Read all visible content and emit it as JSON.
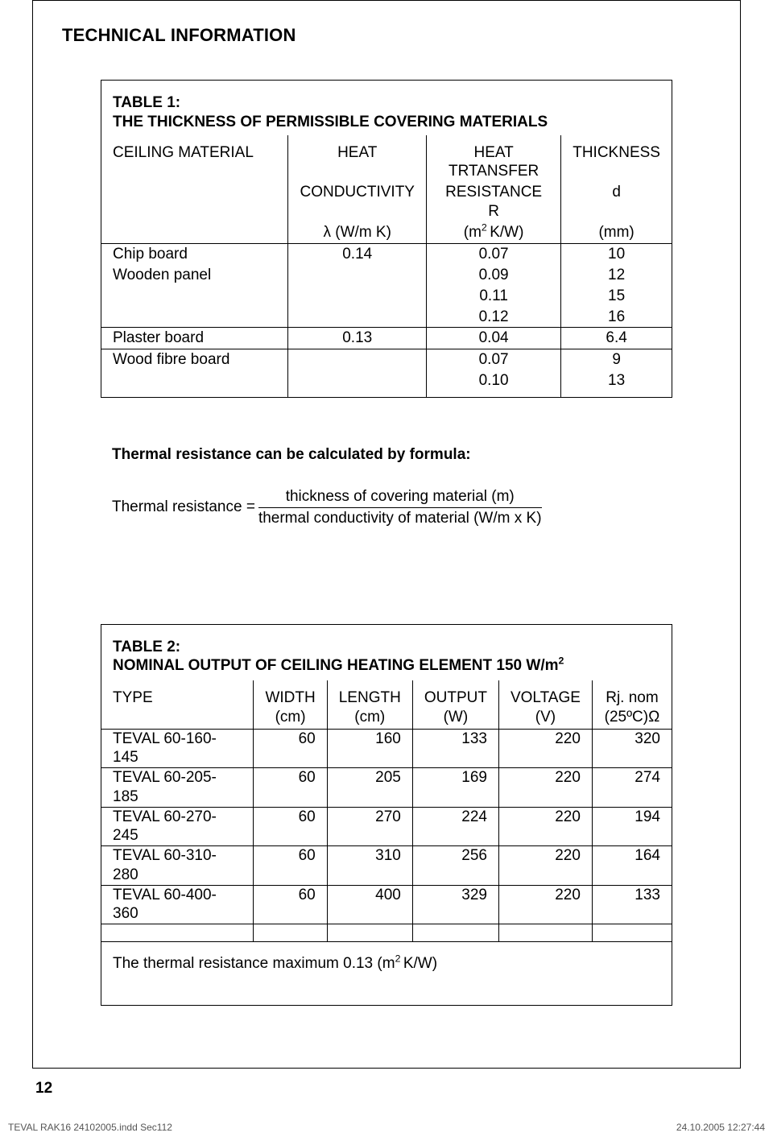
{
  "page_title": "TECHNICAL INFORMATION",
  "page_number": "12",
  "footer_left": "TEVAL RAK16 24102005.indd   Sec112",
  "footer_right": "24.10.2005   12:27:44",
  "table1": {
    "title_l1": "TABLE 1:",
    "title_l2": "THE THICKNESS OF PERMISSIBLE COVERING MATERIALS",
    "head_mat": "CEILING MATERIAL",
    "head_cond_l1": "HEAT",
    "head_cond_l2": "CONDUCTIVITY",
    "head_cond_l3": "λ (W/m K)",
    "head_res_l1": "HEAT  TRTANSFER",
    "head_res_l2": "RESISTANCE    R",
    "head_res_l3_pre": "(m",
    "head_res_l3_post": "K/W)",
    "head_thk_l1": "THICKNESS",
    "head_thk_l2": "d",
    "head_thk_l3": "(mm)",
    "rows": [
      {
        "mat": "Chip board",
        "cond": "0.14",
        "res": "0.07",
        "thk": "10"
      },
      {
        "mat": "Wooden panel",
        "cond": "",
        "res": "0.09",
        "thk": "12"
      },
      {
        "mat": "",
        "cond": "",
        "res": "0.11",
        "thk": "15"
      },
      {
        "mat": "",
        "cond": "",
        "res": "0.12",
        "thk": "16"
      },
      {
        "mat": "Plaster board",
        "cond": "0.13",
        "res": "0.04",
        "thk": "6.4"
      },
      {
        "mat": "Wood fibre board",
        "cond": "",
        "res": "0.07",
        "thk": "9"
      },
      {
        "mat": "",
        "cond": "",
        "res": "0.10",
        "thk": "13"
      }
    ]
  },
  "formula_lead": "Thermal resistance can be calculated by formula:",
  "formula_lhs": "Thermal resistance = ",
  "formula_num": "thickness of covering material (m)",
  "formula_den": "thermal conductivity of material (W/m x K)",
  "table2": {
    "title_l1": "TABLE 2:",
    "title_l2_pre": "NOMINAL OUTPUT OF CEILING HEATING ELEMENT 150 W/m",
    "head_type": "TYPE",
    "head_w": "WIDTH",
    "unit_w": "(cm)",
    "head_l": "LENGTH",
    "unit_l": "(cm)",
    "head_o": "OUTPUT",
    "unit_o": "(W)",
    "head_v": "VOLTAGE",
    "unit_v": "(V)",
    "head_r": "Rj. nom",
    "unit_r": "(25ºC)Ω",
    "rows": [
      {
        "type": "TEVAL 60-160-145",
        "w": "60",
        "l": "160",
        "o": "133",
        "v": "220",
        "r": "320"
      },
      {
        "type": "TEVAL 60-205-185",
        "w": "60",
        "l": "205",
        "o": "169",
        "v": "220",
        "r": "274"
      },
      {
        "type": "TEVAL 60-270-245",
        "w": "60",
        "l": "270",
        "o": "224",
        "v": "220",
        "r": "194"
      },
      {
        "type": "TEVAL 60-310-280",
        "w": "60",
        "l": "310",
        "o": "256",
        "v": "220",
        "r": "164"
      },
      {
        "type": "TEVAL 60-400-360",
        "w": "60",
        "l": "400",
        "o": "329",
        "v": "220",
        "r": "133"
      }
    ],
    "note_pre": "The thermal resistance maximum 0.13 (m",
    "note_post": "K/W)"
  }
}
